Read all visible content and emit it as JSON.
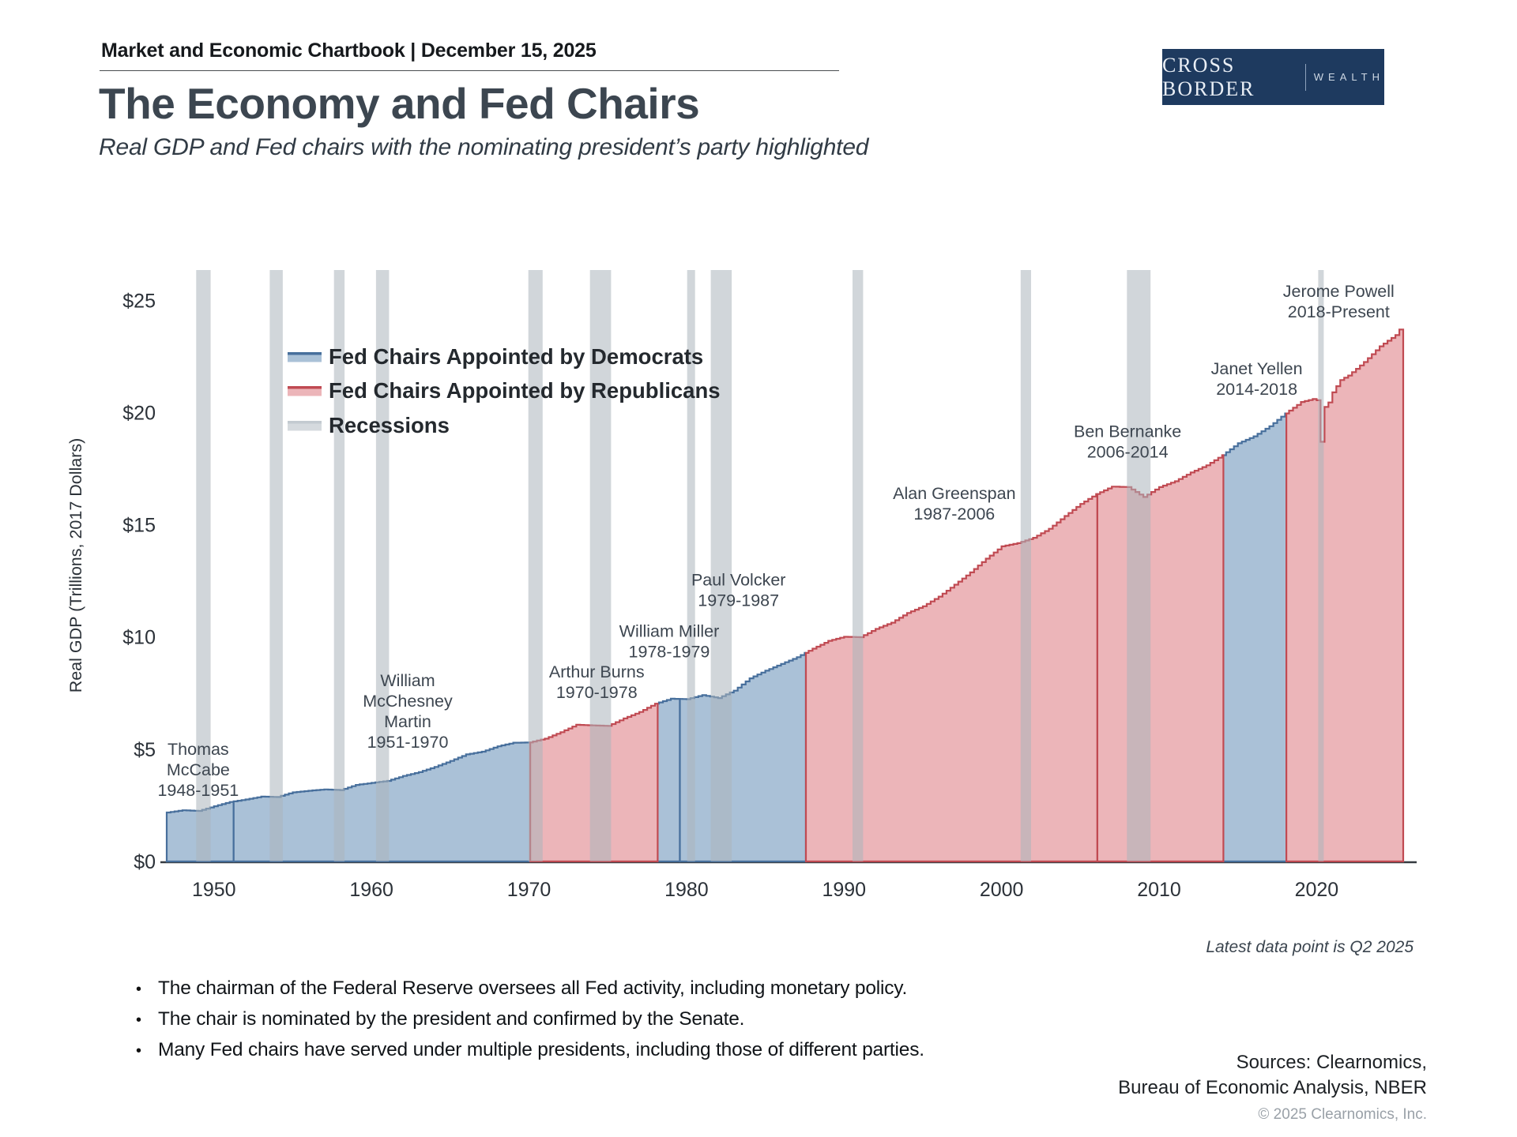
{
  "header": {
    "title_line": "Market and Economic Chartbook | December 15, 2025"
  },
  "logo": {
    "primary": "CROSS BORDER",
    "secondary": "WEALTH"
  },
  "page": {
    "title": "The Economy and Fed Chairs",
    "subtitle": "Real GDP and Fed chairs with the nominating president’s party highlighted",
    "latest_note": "Latest data point is Q2 2025"
  },
  "bullet_char": "•",
  "bullets": [
    "The chairman of the Federal Reserve oversees all Fed activity, including monetary policy.",
    "The chair is nominated by the president and confirmed by the Senate.",
    "Many Fed chairs have served under multiple presidents, including those of different parties."
  ],
  "footer": {
    "sources_line1": "Sources: Clearnomics,",
    "sources_line2": "Bureau of Economic Analysis, NBER",
    "copyright": "© 2025 Clearnomics, Inc."
  },
  "colors": {
    "dem_fill": "#aac1d7",
    "dem_line": "#476f9c",
    "rep_fill": "#ecb5b9",
    "rep_line": "#c04a52",
    "recession_fill": "rgba(171,180,187,0.55)",
    "recession_legend_line": "#c3cad0",
    "recession_legend_fill": "#d5dade",
    "axis_line": "#343a40",
    "tick_text": "#2b3138",
    "annotation_text": "#3d4650",
    "logo_bg": "#1e3a5f"
  },
  "chart_data": {
    "type": "area",
    "title": "Real GDP by Fed chair nominating party",
    "ylabel": "Real GDP (Trillions, 2017 Dollars)",
    "xlabel": "",
    "grid": false,
    "legend_position": "upper-left-inside",
    "xlim": [
      1946.7,
      2026.2
    ],
    "ylim": [
      0,
      26.4
    ],
    "x_ticks": [
      1950,
      1960,
      1970,
      1980,
      1990,
      2000,
      2010,
      2020
    ],
    "y_ticks": [
      {
        "v": 0,
        "label": "$0"
      },
      {
        "v": 5,
        "label": "$5"
      },
      {
        "v": 10,
        "label": "$10"
      },
      {
        "v": 15,
        "label": "$15"
      },
      {
        "v": 20,
        "label": "$20"
      },
      {
        "v": 25,
        "label": "$25"
      }
    ],
    "legend": [
      {
        "label": "Fed Chairs Appointed by Democrats",
        "party": "D"
      },
      {
        "label": "Fed Chairs Appointed by Republicans",
        "party": "R"
      },
      {
        "label": "Recessions",
        "party": "recession"
      }
    ],
    "gdp_anchors_year_trillions": [
      [
        1947.0,
        2.18
      ],
      [
        1948.0,
        2.28
      ],
      [
        1949.0,
        2.25
      ],
      [
        1950.0,
        2.46
      ],
      [
        1951.0,
        2.65
      ],
      [
        1952.0,
        2.76
      ],
      [
        1953.0,
        2.89
      ],
      [
        1954.0,
        2.87
      ],
      [
        1955.0,
        3.08
      ],
      [
        1956.0,
        3.15
      ],
      [
        1957.0,
        3.21
      ],
      [
        1958.0,
        3.18
      ],
      [
        1959.0,
        3.41
      ],
      [
        1960.0,
        3.5
      ],
      [
        1961.0,
        3.59
      ],
      [
        1962.0,
        3.81
      ],
      [
        1963.0,
        3.98
      ],
      [
        1964.0,
        4.21
      ],
      [
        1965.0,
        4.48
      ],
      [
        1966.0,
        4.77
      ],
      [
        1967.0,
        4.89
      ],
      [
        1968.0,
        5.13
      ],
      [
        1969.0,
        5.29
      ],
      [
        1970.0,
        5.3
      ],
      [
        1971.0,
        5.47
      ],
      [
        1972.0,
        5.76
      ],
      [
        1973.0,
        6.09
      ],
      [
        1974.0,
        6.06
      ],
      [
        1975.0,
        6.04
      ],
      [
        1976.0,
        6.37
      ],
      [
        1977.0,
        6.66
      ],
      [
        1978.0,
        7.03
      ],
      [
        1979.0,
        7.25
      ],
      [
        1980.0,
        7.23
      ],
      [
        1981.0,
        7.41
      ],
      [
        1982.0,
        7.28
      ],
      [
        1983.0,
        7.61
      ],
      [
        1984.0,
        8.16
      ],
      [
        1985.0,
        8.5
      ],
      [
        1986.0,
        8.8
      ],
      [
        1987.0,
        9.1
      ],
      [
        1988.0,
        9.48
      ],
      [
        1989.0,
        9.83
      ],
      [
        1990.0,
        10.01
      ],
      [
        1991.0,
        9.99
      ],
      [
        1992.0,
        10.36
      ],
      [
        1993.0,
        10.64
      ],
      [
        1994.0,
        11.07
      ],
      [
        1995.0,
        11.37
      ],
      [
        1996.0,
        11.8
      ],
      [
        1997.0,
        12.33
      ],
      [
        1998.0,
        12.88
      ],
      [
        1999.0,
        13.49
      ],
      [
        2000.0,
        14.04
      ],
      [
        2001.0,
        14.18
      ],
      [
        2002.0,
        14.42
      ],
      [
        2003.0,
        14.82
      ],
      [
        2004.0,
        15.39
      ],
      [
        2005.0,
        15.93
      ],
      [
        2006.0,
        16.37
      ],
      [
        2007.0,
        16.7
      ],
      [
        2008.0,
        16.68
      ],
      [
        2009.0,
        16.24
      ],
      [
        2010.0,
        16.68
      ],
      [
        2011.0,
        16.94
      ],
      [
        2012.0,
        17.33
      ],
      [
        2013.0,
        17.65
      ],
      [
        2014.0,
        18.1
      ],
      [
        2015.0,
        18.63
      ],
      [
        2016.0,
        18.94
      ],
      [
        2017.0,
        19.39
      ],
      [
        2018.0,
        19.96
      ],
      [
        2019.0,
        20.47
      ],
      [
        2019.75,
        20.6
      ],
      [
        2020.0,
        20.55
      ],
      [
        2020.25,
        18.7
      ],
      [
        2020.5,
        20.25
      ],
      [
        2020.75,
        20.45
      ],
      [
        2021.0,
        20.9
      ],
      [
        2021.5,
        21.45
      ],
      [
        2022.0,
        21.65
      ],
      [
        2023.0,
        22.25
      ],
      [
        2024.0,
        22.95
      ],
      [
        2025.0,
        23.45
      ],
      [
        2025.25,
        23.7
      ]
    ],
    "fed_chairs": [
      {
        "name": "Thomas McCabe",
        "term": "1948-1951",
        "party": "D",
        "seg_start": 1946.7,
        "seg_end": 1951.25,
        "label_lines": [
          "Thomas",
          "McCabe",
          "1948-1951"
        ],
        "anchor_year": 1949.0,
        "anchor_value": 5.0
      },
      {
        "name": "William McChesney Martin",
        "term": "1951-1970",
        "party": "D",
        "seg_start": 1951.25,
        "seg_end": 1970.08,
        "label_lines": [
          "William",
          "McChesney",
          "Martin",
          "1951-1970"
        ],
        "anchor_year": 1962.3,
        "anchor_value": 8.05
      },
      {
        "name": "Arthur Burns",
        "term": "1970-1978",
        "party": "R",
        "seg_start": 1970.08,
        "seg_end": 1978.17,
        "label_lines": [
          "Arthur Burns",
          "1970-1978"
        ],
        "anchor_year": 1974.3,
        "anchor_value": 8.45
      },
      {
        "name": "William Miller",
        "term": "1978-1979",
        "party": "D",
        "seg_start": 1978.17,
        "seg_end": 1979.58,
        "label_lines": [
          "William Miller",
          "1978-1979"
        ],
        "anchor_year": 1978.9,
        "anchor_value": 10.25
      },
      {
        "name": "Paul Volcker",
        "term": "1979-1987",
        "party": "D",
        "seg_start": 1979.58,
        "seg_end": 1987.58,
        "label_lines": [
          "Paul Volcker",
          "1979-1987"
        ],
        "anchor_year": 1983.3,
        "anchor_value": 12.55
      },
      {
        "name": "Alan Greenspan",
        "term": "1987-2006",
        "party": "R",
        "seg_start": 1987.58,
        "seg_end": 2006.08,
        "label_lines": [
          "Alan Greenspan",
          "1987-2006"
        ],
        "anchor_year": 1997.0,
        "anchor_value": 16.4
      },
      {
        "name": "Ben Bernanke",
        "term": "2006-2014",
        "party": "R",
        "seg_start": 2006.08,
        "seg_end": 2014.08,
        "label_lines": [
          "Ben Bernanke",
          "2006-2014"
        ],
        "anchor_year": 2008.0,
        "anchor_value": 19.15
      },
      {
        "name": "Janet Yellen",
        "term": "2014-2018",
        "party": "D",
        "seg_start": 2014.08,
        "seg_end": 2018.08,
        "label_lines": [
          "Janet Yellen",
          "2014-2018"
        ],
        "anchor_year": 2016.2,
        "anchor_value": 21.95
      },
      {
        "name": "Jerome Powell",
        "term": "2018-Present",
        "party": "R",
        "seg_start": 2018.08,
        "seg_end": 2025.5,
        "label_lines": [
          "Jerome Powell",
          "2018-Present"
        ],
        "anchor_year": 2021.4,
        "anchor_value": 25.4
      }
    ],
    "recessions": [
      [
        1948.87,
        1949.79
      ],
      [
        1953.54,
        1954.37
      ],
      [
        1957.62,
        1958.29
      ],
      [
        1960.29,
        1961.12
      ],
      [
        1969.96,
        1970.87
      ],
      [
        1973.87,
        1975.21
      ],
      [
        1980.04,
        1980.54
      ],
      [
        1981.54,
        1982.87
      ],
      [
        1990.54,
        1991.21
      ],
      [
        2001.21,
        2001.87
      ],
      [
        2007.96,
        2009.46
      ],
      [
        2020.1,
        2020.45
      ]
    ]
  }
}
